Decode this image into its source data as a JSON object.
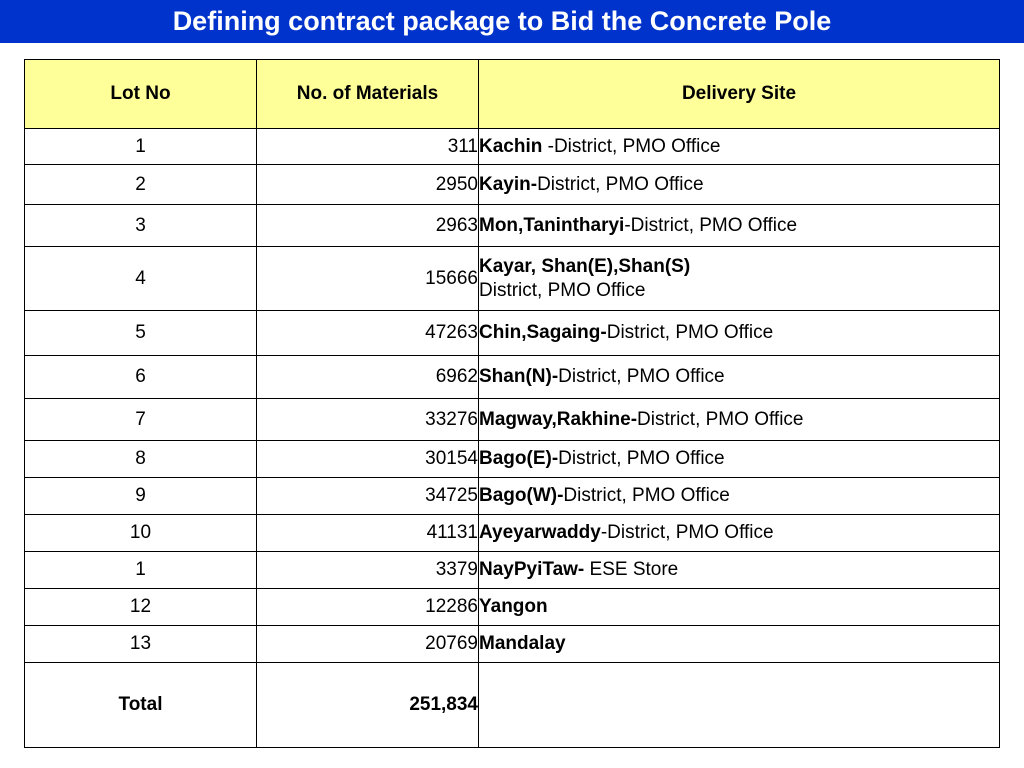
{
  "title": "Defining contract package to Bid the Concrete Pole",
  "table": {
    "headers": [
      "Lot No",
      "No. of Materials",
      "Delivery Site"
    ],
    "rows": [
      {
        "lot": "1",
        "qty": "311",
        "bold": "Kachin",
        "rest": " -District, PMO Office",
        "line2": ""
      },
      {
        "lot": "2",
        "qty": "2950",
        "bold": "Kayin-",
        "rest": "District, PMO Office",
        "line2": ""
      },
      {
        "lot": "3",
        "qty": "2963",
        "bold": "Mon,Tanintharyi",
        "rest": "-District, PMO Office",
        "line2": ""
      },
      {
        "lot": "4",
        "qty": "15666",
        "bold": "Kayar, Shan(E),Shan(S)",
        "rest": "",
        "line2": "District, PMO Office"
      },
      {
        "lot": "5",
        "qty": "47263",
        "bold": "Chin,Sagaing-",
        "rest": "District, PMO Office",
        "line2": ""
      },
      {
        "lot": "6",
        "qty": "6962",
        "bold": "Shan(N)-",
        "rest": "District, PMO Office",
        "line2": ""
      },
      {
        "lot": "7",
        "qty": "33276",
        "bold": "Magway,Rakhine-",
        "rest": "District, PMO Office",
        "line2": ""
      },
      {
        "lot": "8",
        "qty": "30154",
        "bold": "Bago(E)-",
        "rest": "District, PMO Office",
        "line2": ""
      },
      {
        "lot": "9",
        "qty": "34725",
        "bold": "Bago(W)-",
        "rest": "District, PMO Office",
        "line2": ""
      },
      {
        "lot": "10",
        "qty": "41131",
        "bold": "Ayeyarwaddy",
        "rest": "-District, PMO Office",
        "line2": ""
      },
      {
        "lot": "1",
        "qty": "3379",
        "bold": "NayPyiTaw-",
        "rest": " ESE Store",
        "line2": ""
      },
      {
        "lot": "12",
        "qty": "12286",
        "bold": "Yangon",
        "rest": "",
        "line2": ""
      },
      {
        "lot": "13",
        "qty": "20769",
        "bold": "Mandalay",
        "rest": "",
        "line2": ""
      }
    ],
    "total_label": "Total",
    "total_value": "251,834",
    "total_site": ""
  },
  "colors": {
    "title_bar": "#0033cc",
    "header_fill": "#ffff99"
  }
}
